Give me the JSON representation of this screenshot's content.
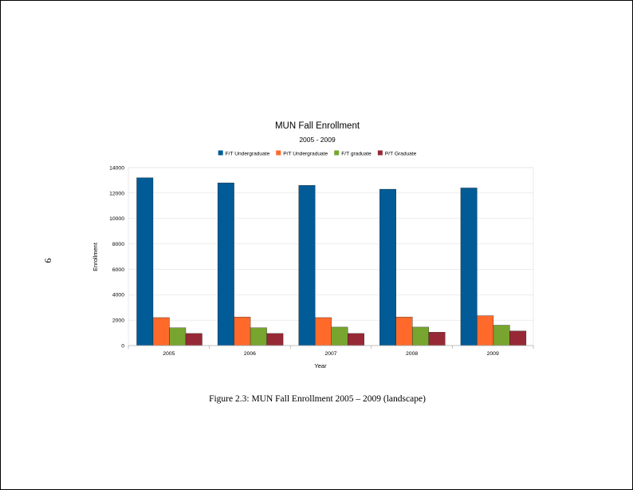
{
  "page": {
    "page_number": "9",
    "caption": "Figure 2.3: MUN Fall Enrollment 2005 – 2009 (landscape)"
  },
  "chart_data": {
    "type": "bar",
    "title": "MUN Fall Enrollment",
    "subtitle": "2005 - 2009",
    "xlabel": "Year",
    "ylabel": "Enrollment",
    "categories": [
      "2005",
      "2006",
      "2007",
      "2008",
      "2009"
    ],
    "ylim": [
      0,
      14000
    ],
    "yticks": [
      0,
      2000,
      4000,
      6000,
      8000,
      10000,
      12000,
      14000
    ],
    "grid": true,
    "legend_position": "top",
    "series": [
      {
        "name": "F/T Undergraduate",
        "color": "#005b96",
        "values": [
          13200,
          12800,
          12600,
          12300,
          12400
        ]
      },
      {
        "name": "P/T Undergraduate",
        "color": "#ff6a2b",
        "values": [
          2200,
          2250,
          2200,
          2250,
          2350
        ]
      },
      {
        "name": "F/T graduate",
        "color": "#77a52f",
        "values": [
          1400,
          1400,
          1450,
          1450,
          1600
        ]
      },
      {
        "name": "P/T Graduate",
        "color": "#962935",
        "values": [
          950,
          950,
          950,
          1050,
          1150
        ]
      }
    ]
  }
}
